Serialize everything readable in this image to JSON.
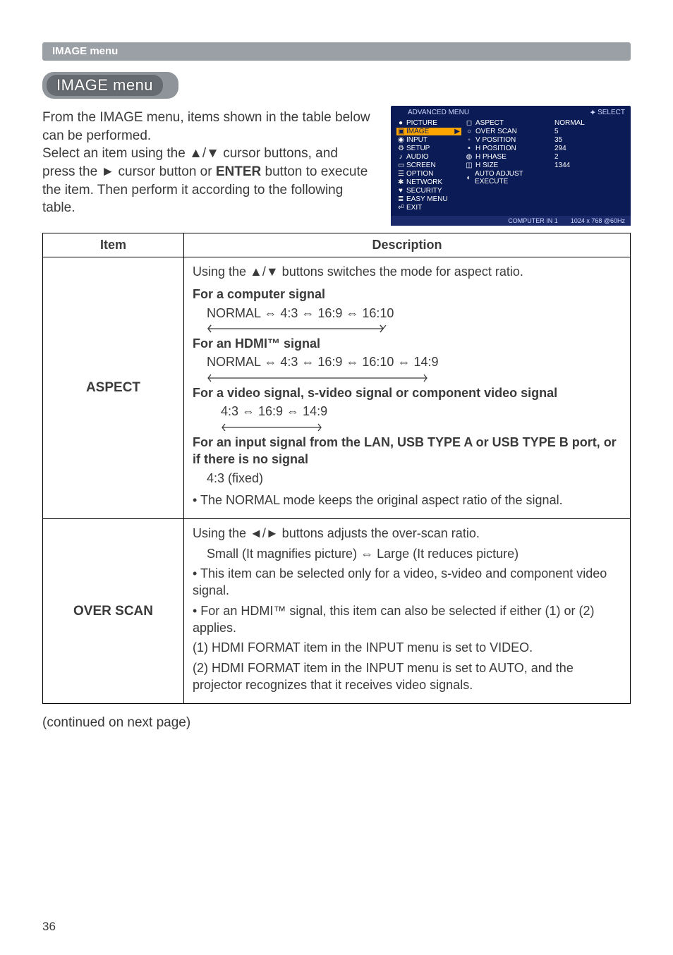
{
  "breadcrumb": "IMAGE menu",
  "section_title": "IMAGE menu",
  "intro": "From the IMAGE menu, items shown in the table below can be performed.\nSelect an item using the ▲/▼ cursor buttons, and press the ► cursor button or ENTER button to execute the item. Then perform it according to the following table.",
  "intro_l1": "From the IMAGE menu, items shown in the table below can be performed.",
  "intro_l2": "Select an item using the ▲/▼ cursor buttons, and press the ► cursor button or ",
  "intro_enter": "ENTER",
  "intro_l3": " button to execute the item. Then perform it according to the following table.",
  "osd": {
    "header_left": "ADVANCED MENU",
    "header_right": "⯌ SELECT",
    "left": [
      {
        "icon": "●",
        "label": "PICTURE",
        "sel": false
      },
      {
        "icon": "▣",
        "label": "IMAGE",
        "sel": true
      },
      {
        "icon": "◉",
        "label": "INPUT",
        "sel": false
      },
      {
        "icon": "⚙",
        "label": "SETUP",
        "sel": false
      },
      {
        "icon": "♪",
        "label": "AUDIO",
        "sel": false
      },
      {
        "icon": "▭",
        "label": "SCREEN",
        "sel": false
      },
      {
        "icon": "☰",
        "label": "OPTION",
        "sel": false
      },
      {
        "icon": "✱",
        "label": "NETWORK",
        "sel": false
      },
      {
        "icon": "♥",
        "label": "SECURITY",
        "sel": false
      },
      {
        "icon": "≣",
        "label": "EASY MENU",
        "sel": false
      },
      {
        "icon": "⏎",
        "label": "EXIT",
        "sel": false
      }
    ],
    "mid": [
      {
        "icon": "◻",
        "label": "ASPECT"
      },
      {
        "icon": "○",
        "label": "OVER SCAN"
      },
      {
        "icon": "◦",
        "label": "V POSITION"
      },
      {
        "icon": "•",
        "label": "H POSITION"
      },
      {
        "icon": "◍",
        "label": "H PHASE"
      },
      {
        "icon": "◫",
        "label": "H SIZE"
      },
      {
        "icon": "◐",
        "label": "AUTO ADJUST EXECUTE"
      }
    ],
    "right": [
      "NORMAL",
      "5",
      "35",
      "294",
      "2",
      "1344",
      ""
    ],
    "footer_left": "COMPUTER IN 1",
    "footer_right": "1024 x 768 @60Hz"
  },
  "table": {
    "head_item": "Item",
    "head_desc": "Description",
    "rows": [
      {
        "item": "ASPECT",
        "blocks": {
          "top": "Using the ▲/▼ buttons switches the mode for aspect ratio.",
          "h1": "For a computer signal",
          "c1": "NORMAL ⇔ 4:3 ⇔ 16:9 ⇔ 16:10",
          "h2": "For an HDMI™ signal",
          "c2": "NORMAL ⇔ 4:3 ⇔ 16:9 ⇔ 16:10 ⇔ 14:9",
          "h3": "For a video signal, s-video signal or component video signal",
          "c3": "4:3 ⇔ 16:9 ⇔ 14:9",
          "h4": "For an input signal from the LAN, USB TYPE A or USB TYPE B port, or if there is no signal",
          "c4": "4:3 (fixed)",
          "note": "• The NORMAL mode keeps the original aspect ratio of the signal."
        }
      },
      {
        "item": "OVER SCAN",
        "blocks": {
          "l1": "Using the ◄/► buttons adjusts the over-scan ratio.",
          "l2": "Small (It magnifies picture) ⇔ Large (It reduces picture)",
          "l3": "• This item can be selected only for a video, s-video and component video signal.",
          "l4": "• For an HDMI™ signal, this item can also be selected if either (1) or (2) applies.",
          "l5": "(1) HDMI FORMAT item in the INPUT menu is set to VIDEO.",
          "l6": "(2) HDMI FORMAT item in the INPUT menu is set to AUTO, and the projector recognizes that it receives video signals."
        }
      }
    ]
  },
  "continued": "(continued on next page)",
  "page_number": "36",
  "arrow_svgs": {
    "w1": 260,
    "w2": 320,
    "w3": 150
  },
  "colors": {
    "osd_bg": "#0b1b55",
    "osd_sel": "#ffa500",
    "bar": "#9aa0a5",
    "pill_outer": "#8e9499",
    "pill_inner": "#656b70",
    "text": "#3a3a3a"
  }
}
